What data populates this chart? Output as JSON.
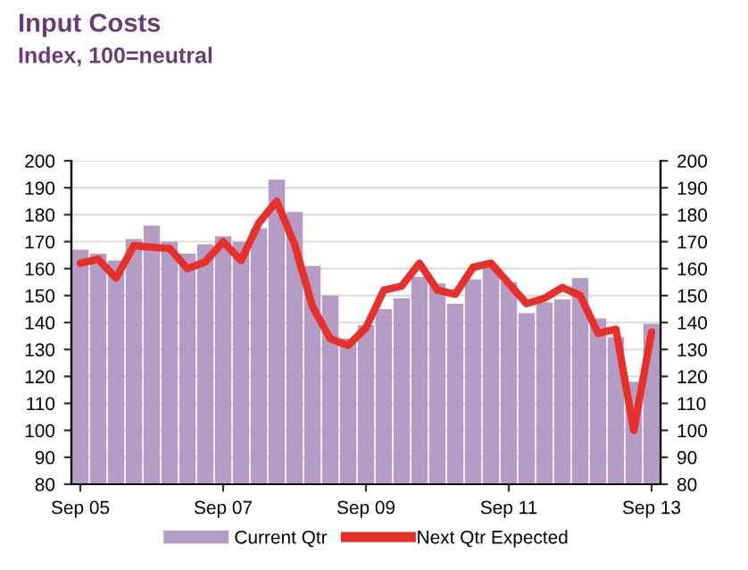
{
  "chart_data": {
    "type": "bar",
    "title": "Input Costs",
    "subtitle": "Index, 100=neutral",
    "categories": [
      "Sep 05",
      null,
      null,
      null,
      null,
      null,
      null,
      null,
      "Sep 07",
      null,
      null,
      null,
      null,
      null,
      null,
      null,
      "Sep 09",
      null,
      null,
      null,
      null,
      null,
      null,
      null,
      "Sep 11",
      null,
      null,
      null,
      null,
      null,
      null,
      null,
      "Sep 13"
    ],
    "series": [
      {
        "name": "Current Qtr",
        "color": "#b59cc4",
        "values": [
          167,
          165.5,
          163,
          171,
          176,
          170,
          165.5,
          169,
          172,
          170,
          175,
          193,
          181,
          161,
          150,
          134,
          139,
          145,
          149,
          157,
          154.5,
          147,
          156,
          161,
          155,
          143.5,
          147.5,
          148.5,
          156.5,
          141.5,
          134.5,
          118,
          139.5
        ]
      },
      {
        "name": "Next Qtr Expected",
        "type": "line",
        "color": "#e8302a",
        "values": [
          162,
          163.5,
          156.5,
          168.5,
          168,
          167.5,
          160,
          162.5,
          170,
          163,
          177,
          185,
          169,
          146,
          134,
          131.5,
          138,
          152,
          153.5,
          162,
          152,
          150.5,
          160.5,
          162,
          154.5,
          147,
          149,
          153,
          150,
          136,
          137.5,
          100,
          136.5
        ]
      }
    ],
    "ylim": [
      80,
      200
    ],
    "yticks": [
      80,
      90,
      100,
      110,
      120,
      130,
      140,
      150,
      160,
      170,
      180,
      190,
      200
    ],
    "y2lim": [
      80,
      200
    ],
    "y2ticks": [
      80,
      90,
      100,
      110,
      120,
      130,
      140,
      150,
      160,
      170,
      180,
      190,
      200
    ],
    "grid": "y",
    "legend": "bottom"
  }
}
